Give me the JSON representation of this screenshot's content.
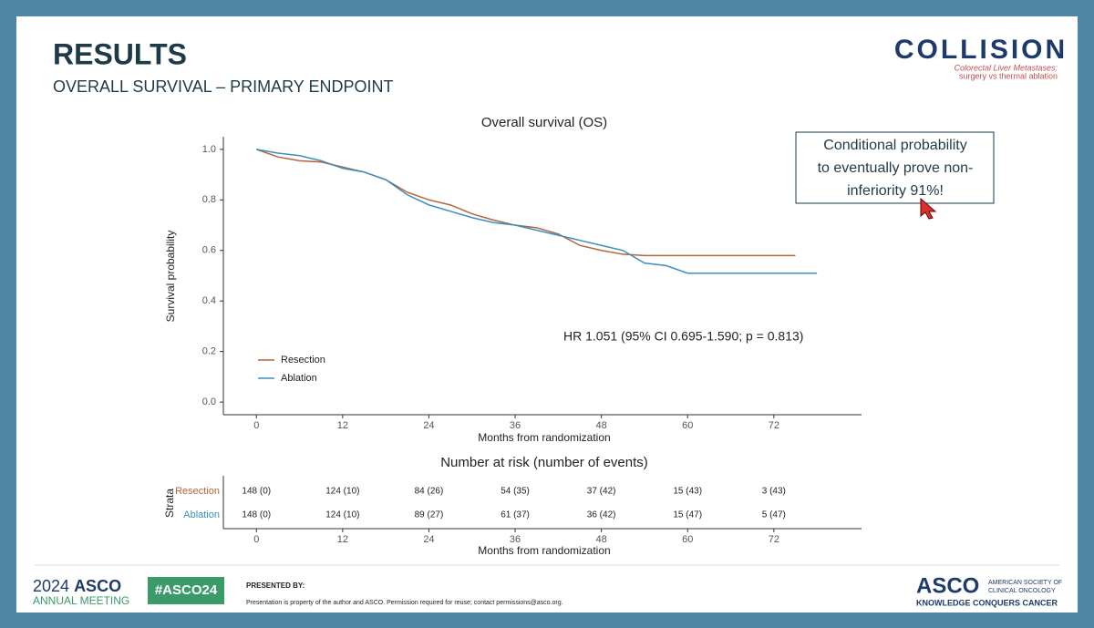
{
  "header": {
    "title": "RESULTS",
    "subtitle": "OVERALL SURVIVAL – PRIMARY ENDPOINT"
  },
  "logo": {
    "name": "COLLISION",
    "tagline": [
      "Colorectal Liver Metastases:",
      "surgery vs thermal ablation"
    ]
  },
  "chart_data": {
    "type": "line",
    "title": "Overall survival (OS)",
    "xlabel": "Months from randomization",
    "ylabel": "Survival probability",
    "x": [
      0,
      3,
      6,
      9,
      12,
      15,
      18,
      21,
      24,
      27,
      30,
      33,
      36,
      39,
      42,
      45,
      48,
      51,
      54,
      57,
      60,
      63,
      66,
      69,
      72,
      75,
      78
    ],
    "series": [
      {
        "name": "Resection",
        "color": "#b5643c",
        "values": [
          1.0,
          0.97,
          0.955,
          0.95,
          0.93,
          0.91,
          0.88,
          0.83,
          0.8,
          0.78,
          0.745,
          0.72,
          0.7,
          0.69,
          0.665,
          0.62,
          0.6,
          0.585,
          0.58,
          0.58,
          0.58,
          0.58,
          0.58,
          0.58,
          0.58,
          0.58,
          null
        ]
      },
      {
        "name": "Ablation",
        "color": "#3a8fc0",
        "values": [
          1.0,
          0.985,
          0.975,
          0.955,
          0.925,
          0.91,
          0.88,
          0.82,
          0.78,
          0.755,
          0.73,
          0.71,
          0.7,
          0.68,
          0.66,
          0.64,
          0.62,
          0.6,
          0.55,
          0.54,
          0.51,
          0.51,
          0.51,
          0.51,
          0.51,
          0.51,
          0.51
        ]
      }
    ],
    "xlim": [
      -4.6,
      84.2
    ],
    "xticks": [
      0,
      12,
      24,
      36,
      48,
      60,
      72
    ],
    "ylim": [
      -0.05,
      1.05
    ],
    "yticks": [
      {
        "value": 0,
        "label": "0.0"
      },
      0.2,
      0.4,
      0.6,
      0.8,
      {
        "value": 1,
        "label": "1.0"
      }
    ],
    "legend": "bottom-left",
    "annotation": "HR 1.051 (95% CI 0.695-1.590; p = 0.813)"
  },
  "callout": [
    "Conditional probability",
    "to eventually prove non-",
    "inferiority 91%!"
  ],
  "risk_table": {
    "title": "Number at risk (number of events)",
    "ylabel": "Strata",
    "xlabel": "Months from randomization",
    "rows": [
      {
        "name": "Resection",
        "color": "#b5643c",
        "cells": [
          "148 (0)",
          "124 (10)",
          "84 (26)",
          "54 (35)",
          "37 (42)",
          "15 (43)",
          "3 (43)"
        ]
      },
      {
        "name": "Ablation",
        "color": "#3a8fc0",
        "cells": [
          "148 (0)",
          "124 (10)",
          "89 (27)",
          "61 (37)",
          "36 (42)",
          "15 (47)",
          "5 (47)"
        ]
      }
    ]
  },
  "footer": {
    "meeting_year": "2024",
    "meeting_org": "ASCO",
    "meeting_sub": "ANNUAL MEETING",
    "hashtag": "#ASCO24",
    "presented_by": "PRESENTED BY:",
    "notice": "Presentation is property of the author and ASCO. Permission required for reuse; contact permissions@asco.org.",
    "org": "ASCO",
    "org_full": [
      "AMERICAN SOCIETY OF",
      "CLINICAL ONCOLOGY"
    ],
    "motto": "KNOWLEDGE CONQUERS CANCER"
  }
}
